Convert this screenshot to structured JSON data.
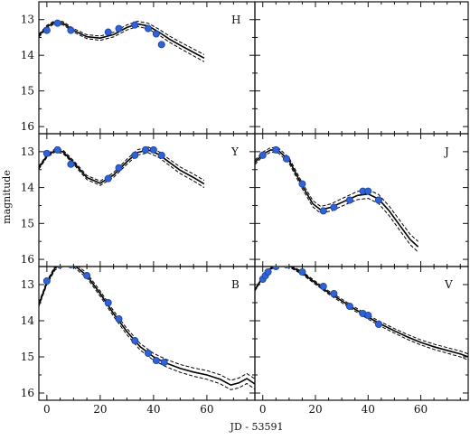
{
  "figure": {
    "xlabel": "JD - 53591",
    "ylabel": "magnitude"
  },
  "chart_data": [
    {
      "type": "scatter",
      "panel": "H",
      "label": "H",
      "row": 0,
      "col": 0,
      "xlim": [
        -3,
        78
      ],
      "ylim": [
        16.2,
        12.5
      ],
      "inverted_y": true,
      "x_ticks": [],
      "y_ticks": [
        13,
        14,
        15,
        16
      ],
      "points": [
        {
          "x": 0,
          "y": 13.3
        },
        {
          "x": 4,
          "y": 13.1
        },
        {
          "x": 9,
          "y": 13.3
        },
        {
          "x": 23,
          "y": 13.35
        },
        {
          "x": 27,
          "y": 13.25
        },
        {
          "x": 33,
          "y": 13.15
        },
        {
          "x": 38,
          "y": 13.25
        },
        {
          "x": 41,
          "y": 13.4
        },
        {
          "x": 43,
          "y": 13.7
        }
      ],
      "model": [
        {
          "x": -3,
          "y": 13.45
        },
        {
          "x": 0,
          "y": 13.2
        },
        {
          "x": 3,
          "y": 13.07
        },
        {
          "x": 6,
          "y": 13.1
        },
        {
          "x": 10,
          "y": 13.3
        },
        {
          "x": 15,
          "y": 13.48
        },
        {
          "x": 20,
          "y": 13.52
        },
        {
          "x": 25,
          "y": 13.42
        },
        {
          "x": 30,
          "y": 13.22
        },
        {
          "x": 34,
          "y": 13.12
        },
        {
          "x": 38,
          "y": 13.18
        },
        {
          "x": 42,
          "y": 13.35
        },
        {
          "x": 46,
          "y": 13.55
        },
        {
          "x": 50,
          "y": 13.72
        },
        {
          "x": 55,
          "y": 13.92
        },
        {
          "x": 59,
          "y": 14.08
        }
      ],
      "band": 0.1
    },
    {
      "type": "scatter",
      "panel": "empty",
      "label": "",
      "row": 0,
      "col": 1,
      "xlim": [
        -3,
        78
      ],
      "ylim": [
        16.2,
        12.5
      ],
      "inverted_y": true,
      "x_ticks": [],
      "y_ticks": [],
      "points": [],
      "model": [],
      "band": 0
    },
    {
      "type": "scatter",
      "panel": "Y",
      "label": "Y",
      "row": 1,
      "col": 0,
      "xlim": [
        -3,
        78
      ],
      "ylim": [
        16.2,
        12.5
      ],
      "inverted_y": true,
      "x_ticks": [],
      "y_ticks": [
        13,
        14,
        15,
        16
      ],
      "points": [
        {
          "x": 0,
          "y": 13.05
        },
        {
          "x": 4,
          "y": 12.95
        },
        {
          "x": 9,
          "y": 13.35
        },
        {
          "x": 23,
          "y": 13.75
        },
        {
          "x": 27,
          "y": 13.45
        },
        {
          "x": 33,
          "y": 13.1
        },
        {
          "x": 37,
          "y": 12.95
        },
        {
          "x": 40,
          "y": 12.95
        },
        {
          "x": 43,
          "y": 13.1
        }
      ],
      "model": [
        {
          "x": -3,
          "y": 13.45
        },
        {
          "x": 0,
          "y": 13.12
        },
        {
          "x": 3,
          "y": 12.97
        },
        {
          "x": 6,
          "y": 13.0
        },
        {
          "x": 10,
          "y": 13.3
        },
        {
          "x": 15,
          "y": 13.72
        },
        {
          "x": 20,
          "y": 13.88
        },
        {
          "x": 25,
          "y": 13.65
        },
        {
          "x": 30,
          "y": 13.28
        },
        {
          "x": 34,
          "y": 13.02
        },
        {
          "x": 38,
          "y": 12.95
        },
        {
          "x": 42,
          "y": 13.08
        },
        {
          "x": 46,
          "y": 13.3
        },
        {
          "x": 50,
          "y": 13.52
        },
        {
          "x": 55,
          "y": 13.72
        },
        {
          "x": 59,
          "y": 13.9
        }
      ],
      "band": 0.1
    },
    {
      "type": "scatter",
      "panel": "J",
      "label": "J",
      "row": 1,
      "col": 1,
      "xlim": [
        -3,
        78
      ],
      "ylim": [
        16.2,
        12.5
      ],
      "inverted_y": true,
      "x_ticks": [],
      "y_ticks": [],
      "points": [
        {
          "x": 0,
          "y": 13.1
        },
        {
          "x": 5,
          "y": 12.95
        },
        {
          "x": 9,
          "y": 13.2
        },
        {
          "x": 15,
          "y": 13.9
        },
        {
          "x": 23,
          "y": 14.65
        },
        {
          "x": 27,
          "y": 14.55
        },
        {
          "x": 33,
          "y": 14.35
        },
        {
          "x": 38,
          "y": 14.1
        },
        {
          "x": 40,
          "y": 14.1
        },
        {
          "x": 44,
          "y": 14.35
        }
      ],
      "model": [
        {
          "x": -3,
          "y": 13.3
        },
        {
          "x": 0,
          "y": 13.07
        },
        {
          "x": 3,
          "y": 12.95
        },
        {
          "x": 6,
          "y": 12.97
        },
        {
          "x": 10,
          "y": 13.25
        },
        {
          "x": 15,
          "y": 13.95
        },
        {
          "x": 19,
          "y": 14.45
        },
        {
          "x": 22,
          "y": 14.62
        },
        {
          "x": 26,
          "y": 14.55
        },
        {
          "x": 31,
          "y": 14.38
        },
        {
          "x": 36,
          "y": 14.22
        },
        {
          "x": 40,
          "y": 14.18
        },
        {
          "x": 44,
          "y": 14.32
        },
        {
          "x": 48,
          "y": 14.65
        },
        {
          "x": 52,
          "y": 15.05
        },
        {
          "x": 56,
          "y": 15.45
        },
        {
          "x": 59,
          "y": 15.65
        }
      ],
      "band": 0.15
    },
    {
      "type": "scatter",
      "panel": "B",
      "label": "B",
      "row": 2,
      "col": 0,
      "xlim": [
        -3,
        78
      ],
      "ylim": [
        16.2,
        12.5
      ],
      "inverted_y": true,
      "x_ticks": [
        0,
        20,
        40,
        60
      ],
      "y_ticks": [
        13,
        14,
        15,
        16
      ],
      "points": [
        {
          "x": 0,
          "y": 12.9
        },
        {
          "x": 5,
          "y": 12.45
        },
        {
          "x": 9,
          "y": 12.45
        },
        {
          "x": 15,
          "y": 12.75
        },
        {
          "x": 23,
          "y": 13.5
        },
        {
          "x": 27,
          "y": 13.95
        },
        {
          "x": 33,
          "y": 14.55
        },
        {
          "x": 38,
          "y": 14.9
        },
        {
          "x": 41,
          "y": 15.1
        },
        {
          "x": 44,
          "y": 15.15
        }
      ],
      "model": [
        {
          "x": -3,
          "y": 13.55
        },
        {
          "x": 0,
          "y": 12.95
        },
        {
          "x": 3,
          "y": 12.55
        },
        {
          "x": 6,
          "y": 12.4
        },
        {
          "x": 10,
          "y": 12.45
        },
        {
          "x": 15,
          "y": 12.75
        },
        {
          "x": 20,
          "y": 13.25
        },
        {
          "x": 25,
          "y": 13.8
        },
        {
          "x": 30,
          "y": 14.3
        },
        {
          "x": 35,
          "y": 14.72
        },
        {
          "x": 40,
          "y": 15.0
        },
        {
          "x": 45,
          "y": 15.18
        },
        {
          "x": 50,
          "y": 15.32
        },
        {
          "x": 55,
          "y": 15.42
        },
        {
          "x": 60,
          "y": 15.5
        },
        {
          "x": 65,
          "y": 15.62
        },
        {
          "x": 69,
          "y": 15.78
        },
        {
          "x": 72,
          "y": 15.72
        },
        {
          "x": 75,
          "y": 15.6
        },
        {
          "x": 78,
          "y": 15.75
        }
      ],
      "band": 0.12
    },
    {
      "type": "scatter",
      "panel": "V",
      "label": "V",
      "row": 2,
      "col": 1,
      "xlim": [
        -3,
        78
      ],
      "ylim": [
        16.2,
        12.5
      ],
      "inverted_y": true,
      "x_ticks": [
        0,
        20,
        40,
        60
      ],
      "y_ticks": [],
      "points": [
        {
          "x": 0,
          "y": 12.85
        },
        {
          "x": 1,
          "y": 12.75
        },
        {
          "x": 2,
          "y": 12.65
        },
        {
          "x": 5,
          "y": 12.5
        },
        {
          "x": 9,
          "y": 12.45
        },
        {
          "x": 15,
          "y": 12.65
        },
        {
          "x": 23,
          "y": 13.05
        },
        {
          "x": 27,
          "y": 13.25
        },
        {
          "x": 33,
          "y": 13.6
        },
        {
          "x": 38,
          "y": 13.8
        },
        {
          "x": 40,
          "y": 13.85
        },
        {
          "x": 44,
          "y": 14.1
        }
      ],
      "model": [
        {
          "x": -3,
          "y": 13.15
        },
        {
          "x": 0,
          "y": 12.8
        },
        {
          "x": 3,
          "y": 12.55
        },
        {
          "x": 6,
          "y": 12.45
        },
        {
          "x": 10,
          "y": 12.48
        },
        {
          "x": 15,
          "y": 12.68
        },
        {
          "x": 20,
          "y": 12.95
        },
        {
          "x": 25,
          "y": 13.22
        },
        {
          "x": 30,
          "y": 13.45
        },
        {
          "x": 35,
          "y": 13.68
        },
        {
          "x": 40,
          "y": 13.9
        },
        {
          "x": 45,
          "y": 14.1
        },
        {
          "x": 50,
          "y": 14.28
        },
        {
          "x": 55,
          "y": 14.45
        },
        {
          "x": 60,
          "y": 14.6
        },
        {
          "x": 65,
          "y": 14.72
        },
        {
          "x": 70,
          "y": 14.82
        },
        {
          "x": 75,
          "y": 14.92
        },
        {
          "x": 78,
          "y": 15.0
        }
      ],
      "band": 0.07
    }
  ],
  "colors": {
    "point": "#2f63d6",
    "point_edge": "#1a3f9a",
    "line": "#000000",
    "axis": "#111111"
  }
}
